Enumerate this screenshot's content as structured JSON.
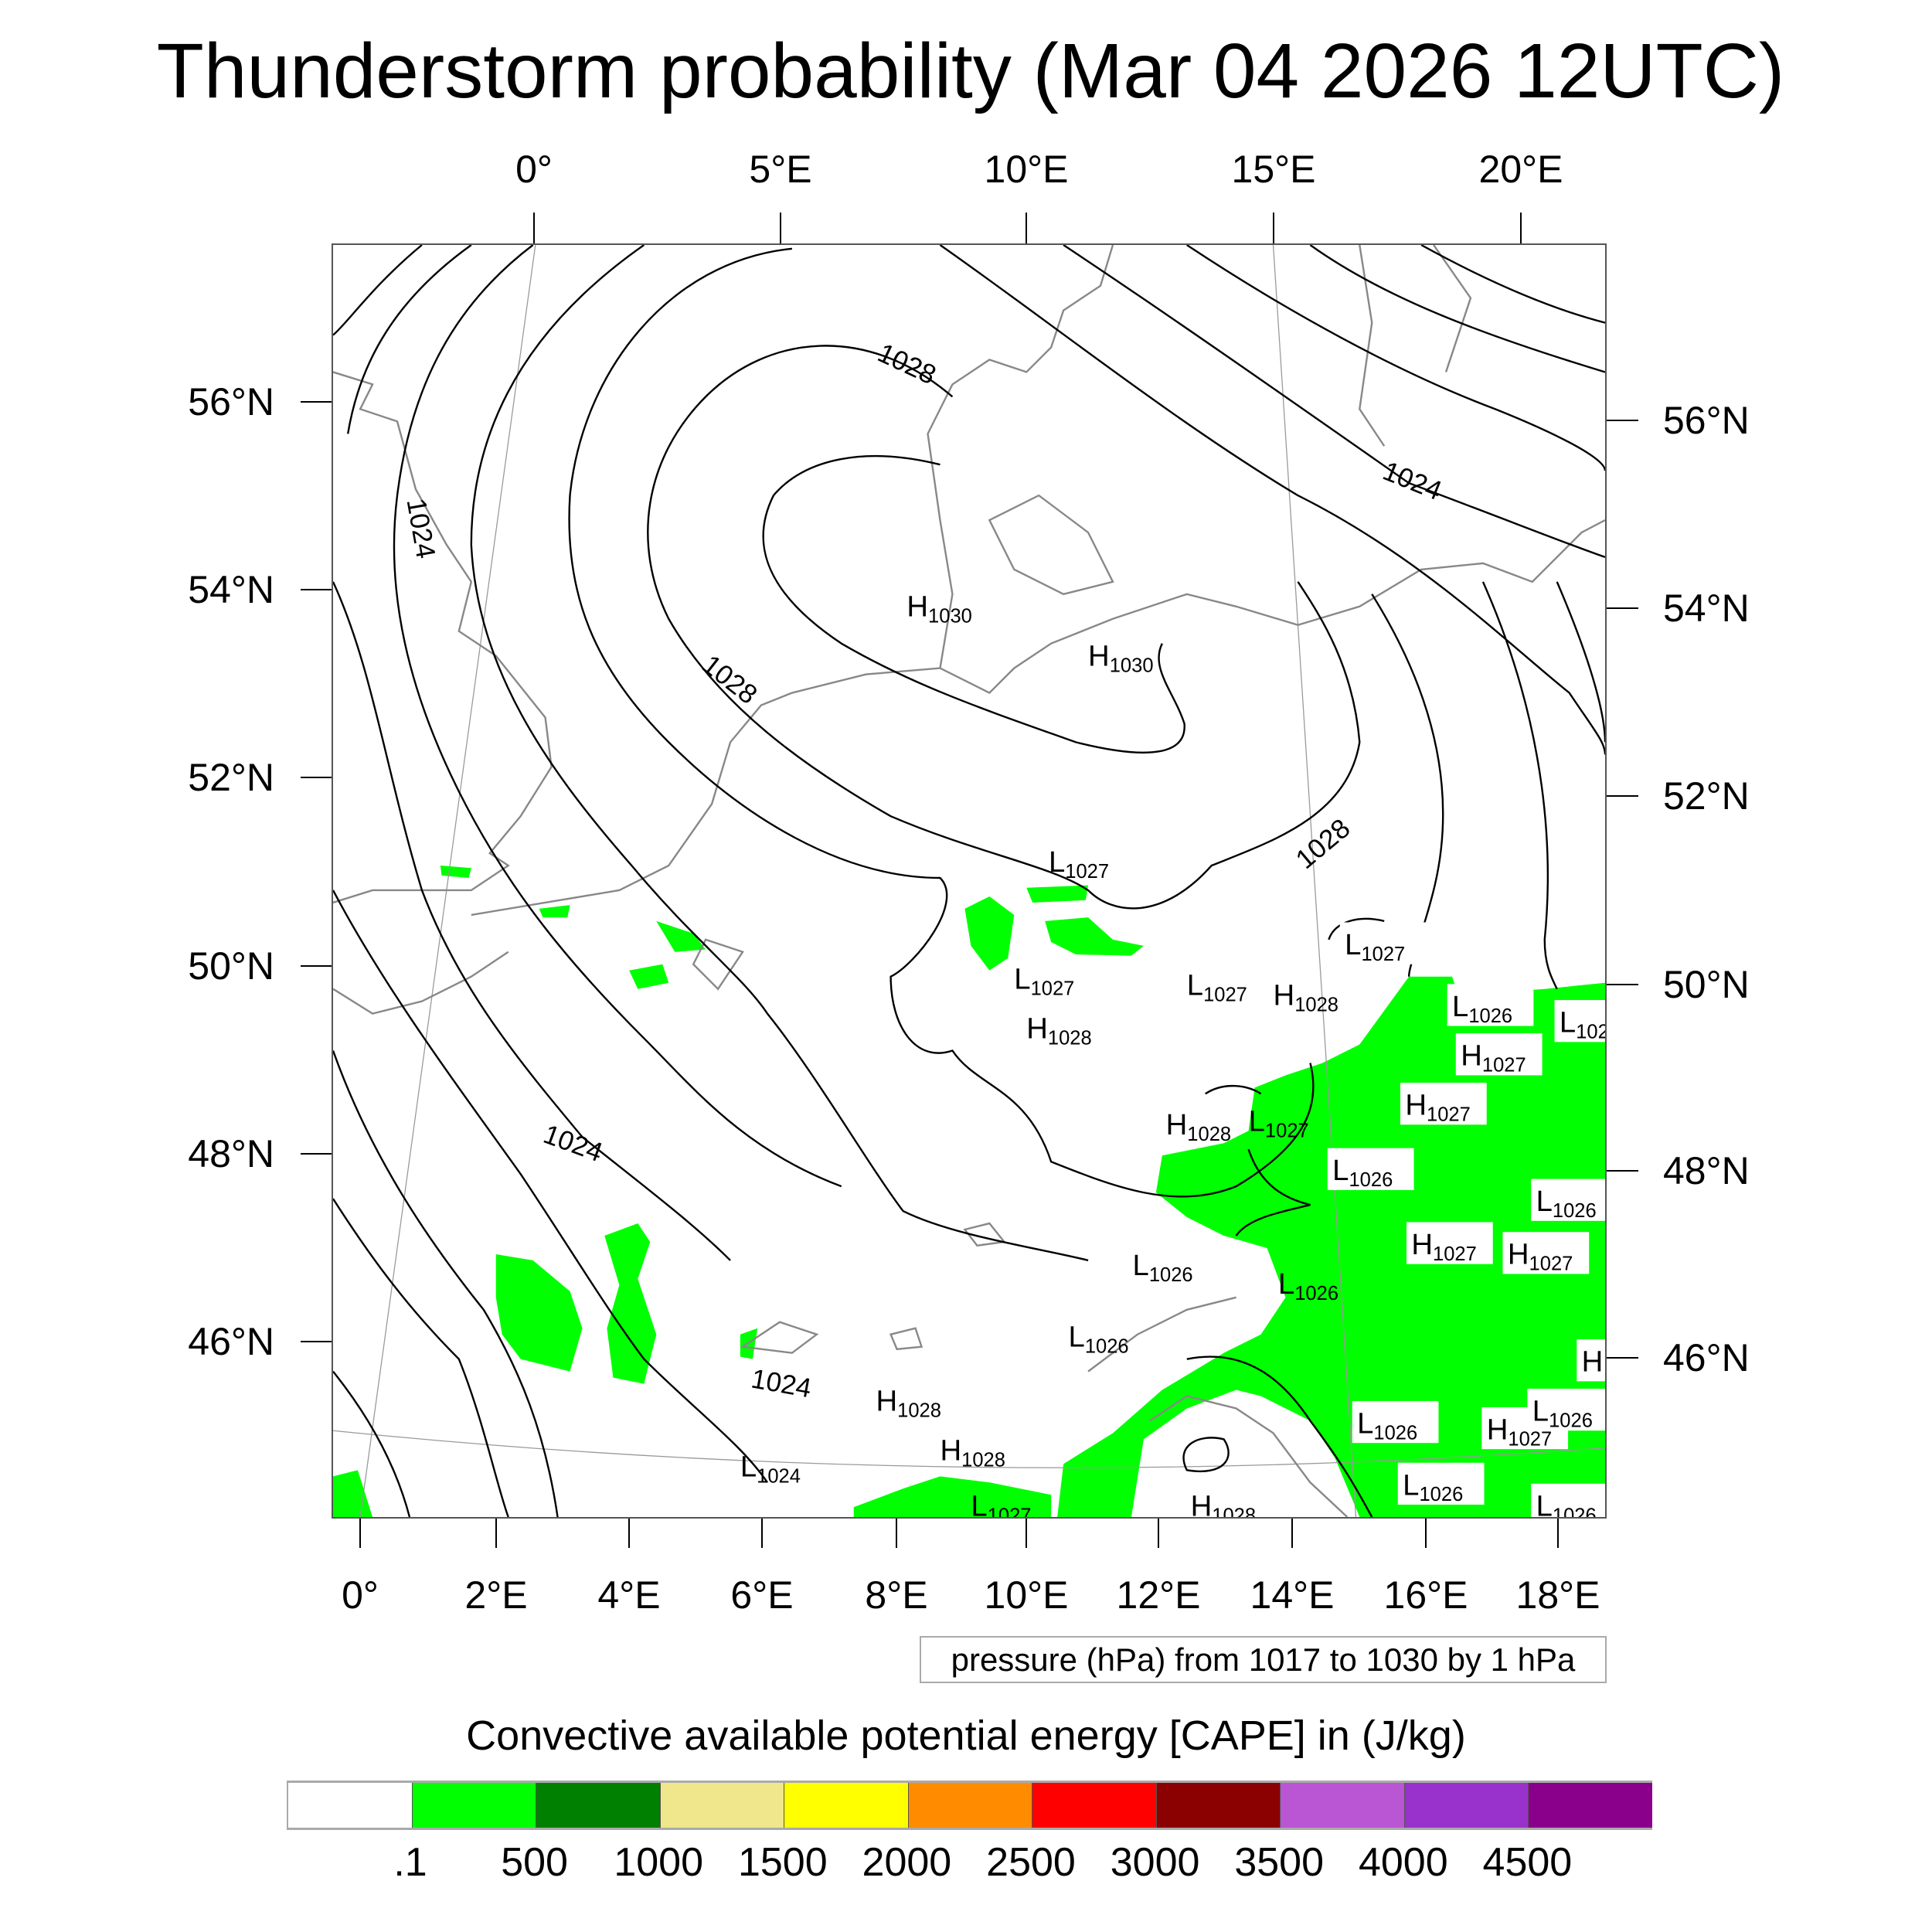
{
  "title": "Thunderstorm probability (Mar 04 2026 12UTC)",
  "top_lon_labels": [
    "0°",
    "5°E",
    "10°E",
    "15°E",
    "20°E"
  ],
  "bottom_lon_labels": [
    "0°",
    "2°E",
    "4°E",
    "6°E",
    "8°E",
    "10°E",
    "12°E",
    "14°E",
    "16°E",
    "18°E"
  ],
  "left_lat_labels": [
    "56°N",
    "54°N",
    "52°N",
    "50°N",
    "48°N",
    "46°N"
  ],
  "right_lat_labels": [
    "56°N",
    "54°N",
    "52°N",
    "50°N",
    "48°N",
    "46°N"
  ],
  "contour_labels": [
    "1028",
    "1028",
    "1028",
    "1024",
    "1024",
    "1024",
    "1024"
  ],
  "pressure_centers": [
    {
      "type": "L",
      "value": "1027"
    },
    {
      "type": "H",
      "value": "1030"
    },
    {
      "type": "H",
      "value": "1030"
    },
    {
      "type": "L",
      "value": "1027"
    },
    {
      "type": "L",
      "value": "1027"
    },
    {
      "type": "L",
      "value": "1027"
    },
    {
      "type": "H",
      "value": "1028"
    },
    {
      "type": "H",
      "value": "1028"
    },
    {
      "type": "L",
      "value": "1026"
    },
    {
      "type": "L",
      "value": "102"
    },
    {
      "type": "H",
      "value": "1027"
    },
    {
      "type": "H",
      "value": "1027"
    },
    {
      "type": "H",
      "value": "1028"
    },
    {
      "type": "L",
      "value": "1027"
    },
    {
      "type": "L",
      "value": "1026"
    },
    {
      "type": "L",
      "value": "1026"
    },
    {
      "type": "H",
      "value": "1027"
    },
    {
      "type": "H",
      "value": "1027"
    },
    {
      "type": "L",
      "value": "1026"
    },
    {
      "type": "L",
      "value": "1026"
    },
    {
      "type": "L",
      "value": "1026"
    },
    {
      "type": "H",
      "value": "1028"
    },
    {
      "type": "H",
      "value": "1028"
    },
    {
      "type": "L",
      "value": "1024"
    },
    {
      "type": "L",
      "value": "1026"
    },
    {
      "type": "H",
      "value": "1027"
    },
    {
      "type": "L",
      "value": "1026"
    },
    {
      "type": "L",
      "value": "1026"
    },
    {
      "type": "L",
      "value": "1026"
    },
    {
      "type": "L",
      "value": "1027"
    },
    {
      "type": "H",
      "value": "1028"
    },
    {
      "type": "H",
      "value": ""
    }
  ],
  "contour_legend": "pressure (hPa) from 1017 to 1030 by 1 hPa",
  "colorbar": {
    "title": "Convective available potential energy [CAPE] in (J/kg)",
    "colors": [
      "#ffffff",
      "#00ff00",
      "#008000",
      "#f0e68c",
      "#ffff00",
      "#ff8c00",
      "#ff0000",
      "#8b0000",
      "#ba55d3",
      "#9932cc",
      "#8b008b"
    ],
    "labels": [
      ".1",
      "500",
      "1000",
      "1500",
      "2000",
      "2500",
      "3000",
      "3500",
      "4000",
      "4500"
    ]
  }
}
